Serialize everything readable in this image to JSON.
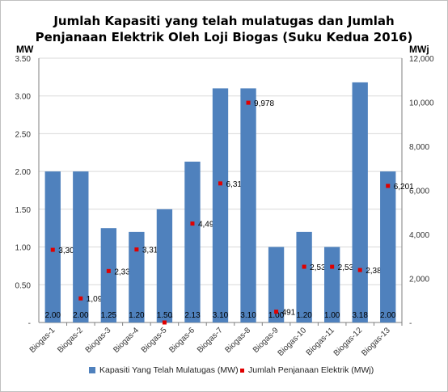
{
  "chart_data": {
    "type": "bar",
    "title": "Jumlah Kapasiti yang telah mulatugas dan Jumlah",
    "subtitle": "Penjanaan Elektrik Oleh Loji Biogas (Suku Kedua 2016)",
    "categories": [
      "Biogas-1",
      "Biogas-2",
      "Biogas-3",
      "Biogas-4",
      "Biogas-5",
      "Biogas-6",
      "Biogas-7",
      "Biogas-8",
      "Biogas-9",
      "Biogas-10",
      "Biogas-11",
      "Biogas-12",
      "Biogas-13"
    ],
    "series": [
      {
        "name": "Kapasiti Yang Telah Mulatugas (MW)",
        "type": "bar",
        "axis": "left",
        "color": "#4f81bd",
        "values": [
          2.0,
          2.0,
          1.25,
          1.2,
          1.5,
          2.13,
          3.1,
          3.1,
          1.0,
          1.2,
          1.0,
          3.18,
          2.0
        ],
        "labels": [
          "2.00",
          "2.00",
          "1.25",
          "1.20",
          "1.50",
          "2.13",
          "3.10",
          "3.10",
          "1.00",
          "1.20",
          "1.00",
          "3.18",
          "2.00"
        ]
      },
      {
        "name": "Jumlah Penjanaan Elektrik (MWj)",
        "type": "scatter",
        "axis": "right",
        "color": "#e00000",
        "values": [
          3300,
          1093,
          2336,
          3315,
          0,
          4491,
          6316,
          9978,
          491,
          2531,
          2530,
          2382,
          6201
        ],
        "labels": [
          "3,300",
          "1,093",
          "2,336",
          "3,315",
          "-",
          "4,491",
          "6,316",
          "9,978",
          "491",
          "2,531",
          "2,530",
          "2,382",
          "6,201"
        ]
      }
    ],
    "ylabel_left": "MW",
    "ylabel_right": "MWj",
    "ylim_left": [
      0,
      3.5
    ],
    "ylim_right": [
      0,
      12000
    ],
    "yticks_left": [
      "-",
      "0.50",
      "1.00",
      "1.50",
      "2.00",
      "2.50",
      "3.00",
      "3.50"
    ],
    "yticks_right": [
      "-",
      "2,000",
      "4,000",
      "6,000",
      "8,000",
      "10,000",
      "12,000"
    ],
    "grid": true,
    "legend_position": "bottom"
  }
}
